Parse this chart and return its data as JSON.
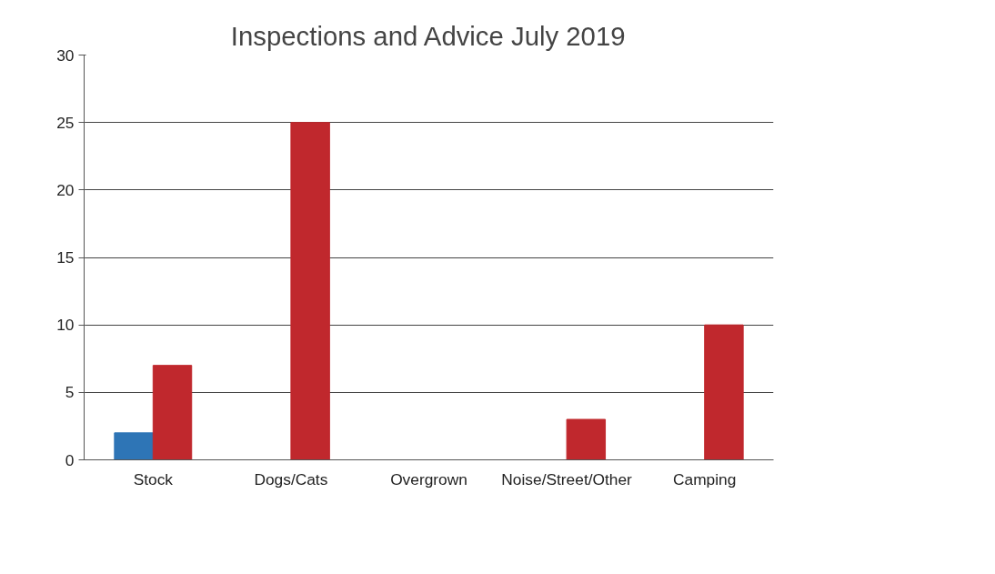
{
  "chart_data": {
    "type": "bar",
    "title": "Inspections and Advice July 2019",
    "categories": [
      "Stock",
      "Dogs/Cats",
      "Overgrown",
      "Noise/Street/Other",
      "Camping"
    ],
    "series": [
      {
        "color": "#2e75b6",
        "values": [
          2,
          0,
          0,
          0,
          0
        ]
      },
      {
        "color": "#c0282d",
        "values": [
          7,
          25,
          0,
          3,
          10
        ]
      }
    ],
    "ylim": [
      0,
      30
    ],
    "yticks": [
      0,
      5,
      10,
      15,
      20,
      25,
      30
    ],
    "grid": "y"
  }
}
